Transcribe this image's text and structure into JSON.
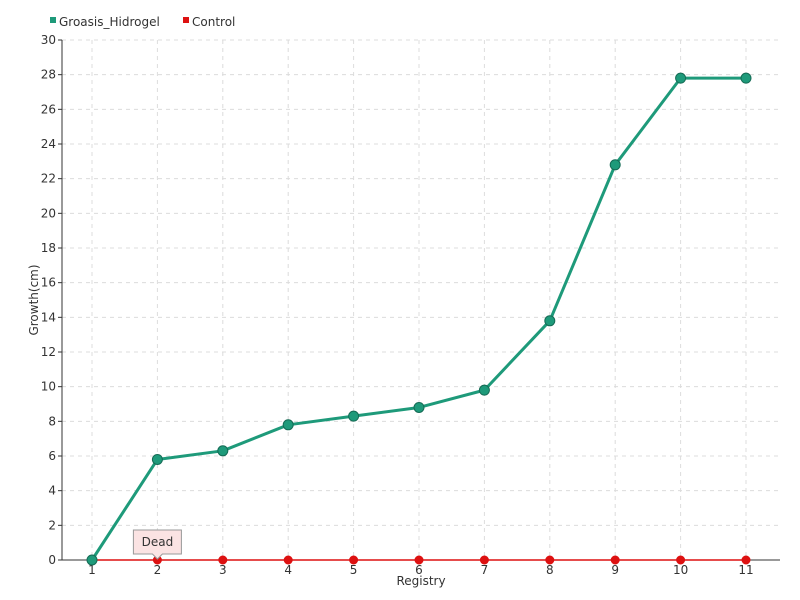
{
  "chart_data": {
    "type": "line",
    "title": "",
    "xlabel": "Registry",
    "ylabel": "Growth(cm)",
    "x": [
      1,
      2,
      3,
      4,
      5,
      6,
      7,
      8,
      9,
      10,
      11
    ],
    "ylim": [
      0,
      30
    ],
    "yticks": [
      0,
      2,
      4,
      6,
      8,
      10,
      12,
      14,
      16,
      18,
      20,
      22,
      24,
      26,
      28,
      30
    ],
    "grid": true,
    "legend_position": "top-left",
    "series": [
      {
        "name": "Groasis_Hidrogel",
        "color": "#1e9a7a",
        "values": [
          0,
          5.8,
          6.3,
          7.8,
          8.3,
          8.8,
          9.8,
          13.8,
          22.8,
          27.8,
          27.8
        ]
      },
      {
        "name": "Control",
        "color": "#dd1111",
        "values": [
          0,
          0,
          0,
          0,
          0,
          0,
          0,
          0,
          0,
          0,
          0
        ]
      }
    ],
    "annotations": [
      {
        "text": "Dead",
        "series": "Control",
        "x": 2
      }
    ]
  }
}
